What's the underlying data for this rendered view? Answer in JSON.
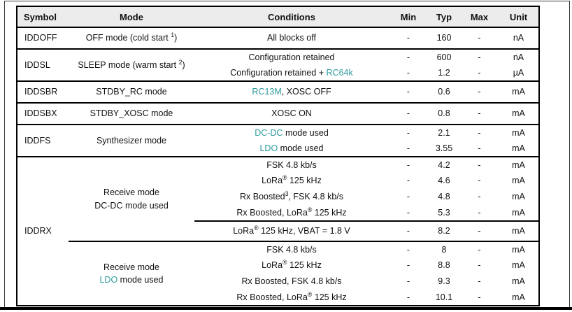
{
  "table": {
    "headers": [
      "Symbol",
      "Mode",
      "Conditions",
      "Min",
      "Typ",
      "Max",
      "Unit"
    ],
    "colors": {
      "accent_teal": "#2f9a9d",
      "header_bg": "#ececec",
      "border": "#000000"
    },
    "groups": [
      {
        "rows": [
          {
            "symbol": {
              "text": "IDDOFF",
              "span": 1
            },
            "mode": {
              "span": 1,
              "lines": [
                [
                  {
                    "t": "OFF mode (cold start "
                  },
                  {
                    "t": "1",
                    "sup": true
                  },
                  {
                    "t": ")"
                  }
                ]
              ]
            },
            "cond": [
              {
                "t": "All blocks off"
              }
            ],
            "min": "-",
            "typ": "160",
            "max": "-",
            "unit": "nA"
          }
        ]
      },
      {
        "rows": [
          {
            "symbol": {
              "text": "IDDSL",
              "span": 2
            },
            "mode": {
              "span": 2,
              "lines": [
                [
                  {
                    "t": "SLEEP mode (warm start "
                  },
                  {
                    "t": "2",
                    "sup": true
                  },
                  {
                    "t": ")"
                  }
                ]
              ]
            },
            "cond": [
              {
                "t": "Configuration retained"
              }
            ],
            "min": "-",
            "typ": "600",
            "max": "-",
            "unit": "nA"
          },
          {
            "cond": [
              {
                "t": "Configuration retained + "
              },
              {
                "t": "RC64k",
                "teal": true
              }
            ],
            "min": "-",
            "typ": "1.2",
            "max": "-",
            "unit": "µA"
          }
        ]
      },
      {
        "rows": [
          {
            "symbol": {
              "text": "IDDSBR",
              "span": 1
            },
            "mode": {
              "span": 1,
              "lines": [
                [
                  {
                    "t": "STDBY_RC mode"
                  }
                ]
              ]
            },
            "cond": [
              {
                "t": "RC13M",
                "teal": true
              },
              {
                "t": ", XOSC OFF"
              }
            ],
            "min": "-",
            "typ": "0.6",
            "max": "-",
            "unit": "mA"
          }
        ]
      },
      {
        "rows": [
          {
            "symbol": {
              "text": "IDDSBX",
              "span": 1
            },
            "mode": {
              "span": 1,
              "lines": [
                [
                  {
                    "t": "STDBY_XOSC mode"
                  }
                ]
              ]
            },
            "cond": [
              {
                "t": "XOSC ON"
              }
            ],
            "min": "-",
            "typ": "0.8",
            "max": "-",
            "unit": "mA"
          }
        ]
      },
      {
        "rows": [
          {
            "symbol": {
              "text": "IDDFS",
              "span": 2
            },
            "mode": {
              "span": 2,
              "lines": [
                [
                  {
                    "t": "Synthesizer mode"
                  }
                ]
              ]
            },
            "cond": [
              {
                "t": "DC-DC",
                "teal": true
              },
              {
                "t": " mode used"
              }
            ],
            "min": "-",
            "typ": "2.1",
            "max": "-",
            "unit": "mA"
          },
          {
            "cond": [
              {
                "t": "LDO",
                "teal": true
              },
              {
                "t": " mode used"
              }
            ],
            "min": "-",
            "typ": "3.55",
            "max": "-",
            "unit": "mA"
          }
        ]
      },
      {
        "rows": [
          {
            "symbol": {
              "text": "IDDRX",
              "span": 9
            },
            "mode": {
              "span": 5,
              "lines": [
                [
                  {
                    "t": "Receive mode"
                  }
                ],
                [
                  {
                    "t": "DC-DC mode used"
                  }
                ]
              ]
            },
            "cond": [
              {
                "t": "FSK 4.8 kb/s"
              }
            ],
            "min": "-",
            "typ": "4.2",
            "max": "-",
            "unit": "mA"
          },
          {
            "cond": [
              {
                "t": "LoRa"
              },
              {
                "t": "®",
                "sup": true
              },
              {
                "t": " 125 kHz"
              }
            ],
            "min": "-",
            "typ": "4.6",
            "max": "-",
            "unit": "mA"
          },
          {
            "cond": [
              {
                "t": "Rx Boosted"
              },
              {
                "t": "3",
                "sup": true
              },
              {
                "t": ", FSK 4.8 kb/s"
              }
            ],
            "min": "-",
            "typ": "4.8",
            "max": "-",
            "unit": "mA"
          },
          {
            "cond": [
              {
                "t": "Rx Boosted, LoRa"
              },
              {
                "t": "®",
                "sup": true
              },
              {
                "t": " 125 kHz"
              }
            ],
            "min": "-",
            "typ": "5.3",
            "max": "-",
            "unit": "mA"
          },
          {
            "cond": [
              {
                "t": "LoRa"
              },
              {
                "t": "®",
                "sup": true
              },
              {
                "t": " 125 kHz, VBAT = 1.8 V"
              }
            ],
            "min": "-",
            "typ": "8.2",
            "max": "-",
            "unit": "mA",
            "line_from": "cond"
          },
          {
            "mode": {
              "span": 4,
              "lines": [
                [
                  {
                    "t": "Receive mode"
                  }
                ],
                [
                  {
                    "t": "LDO",
                    "teal": true
                  },
                  {
                    "t": " mode used"
                  }
                ]
              ]
            },
            "cond": [
              {
                "t": "FSK 4.8 kb/s"
              }
            ],
            "min": "-",
            "typ": "8",
            "max": "-",
            "unit": "mA",
            "line_from": "mode"
          },
          {
            "cond": [
              {
                "t": "LoRa"
              },
              {
                "t": "®",
                "sup": true
              },
              {
                "t": " 125 kHz"
              }
            ],
            "min": "-",
            "typ": "8.8",
            "max": "-",
            "unit": "mA"
          },
          {
            "cond": [
              {
                "t": "Rx Boosted, FSK 4.8 kb/s"
              }
            ],
            "min": "-",
            "typ": "9.3",
            "max": "-",
            "unit": "mA"
          },
          {
            "cond": [
              {
                "t": "Rx Boosted, LoRa"
              },
              {
                "t": "®",
                "sup": true
              },
              {
                "t": " 125 kHz"
              }
            ],
            "min": "-",
            "typ": "10.1",
            "max": "-",
            "unit": "mA"
          }
        ]
      }
    ]
  }
}
